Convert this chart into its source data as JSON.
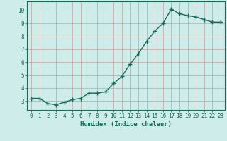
{
  "x": [
    0,
    1,
    2,
    3,
    4,
    5,
    6,
    7,
    8,
    9,
    10,
    11,
    12,
    13,
    14,
    15,
    16,
    17,
    18,
    19,
    20,
    21,
    22,
    23
  ],
  "y": [
    3.2,
    3.2,
    2.8,
    2.7,
    2.9,
    3.1,
    3.2,
    3.6,
    3.6,
    3.7,
    4.35,
    4.9,
    5.85,
    6.65,
    7.6,
    8.4,
    9.0,
    10.1,
    9.75,
    9.6,
    9.5,
    9.3,
    9.1,
    9.1
  ],
  "line_color": "#1a6b5a",
  "marker": "+",
  "marker_size": 4,
  "marker_lw": 1.0,
  "xlabel": "Humidex (Indice chaleur)",
  "xlim": [
    -0.5,
    23.5
  ],
  "ylim": [
    2.3,
    10.7
  ],
  "yticks": [
    3,
    4,
    5,
    6,
    7,
    8,
    9,
    10
  ],
  "xticks": [
    0,
    1,
    2,
    3,
    4,
    5,
    6,
    7,
    8,
    9,
    10,
    11,
    12,
    13,
    14,
    15,
    16,
    17,
    18,
    19,
    20,
    21,
    22,
    23
  ],
  "bg_color": "#cdecea",
  "grid_color": "#c8a0a0",
  "line_width": 1.0,
  "xlabel_fontsize": 6.5,
  "tick_fontsize": 5.5,
  "spine_color": "#1a6b5a"
}
